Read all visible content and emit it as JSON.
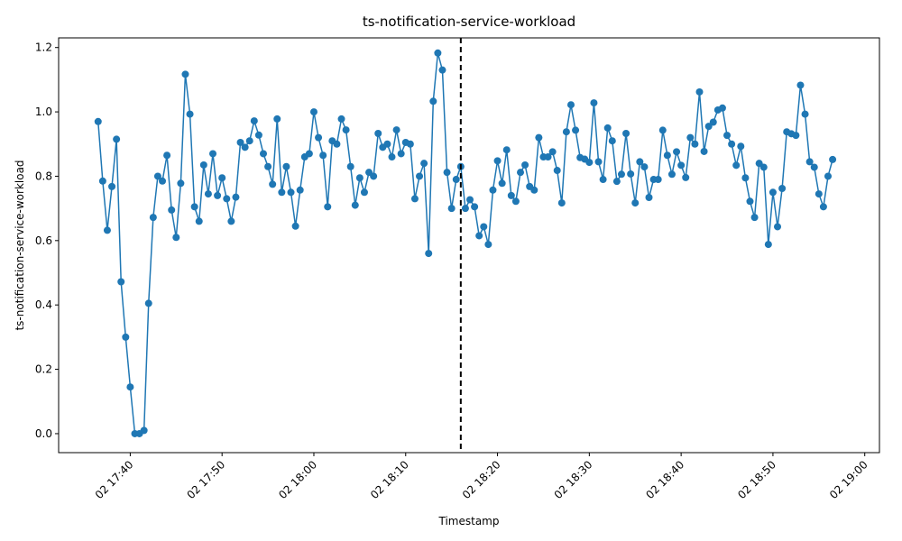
{
  "chart_data": {
    "type": "line",
    "title": "ts-notification-service-workload",
    "x_label": "Timestamp",
    "y_label": "ts-notification-service-workload",
    "x": [
      1056.5,
      1057,
      1057.5,
      1058,
      1058.5,
      1059,
      1059.5,
      1060,
      1060.5,
      1061,
      1061.5,
      1062,
      1062.5,
      1063,
      1063.5,
      1064,
      1064.5,
      1065,
      1065.5,
      1066,
      1066.5,
      1067,
      1067.5,
      1068,
      1068.5,
      1069,
      1069.5,
      1070,
      1070.5,
      1071,
      1071.5,
      1072,
      1072.5,
      1073,
      1073.5,
      1074,
      1074.5,
      1075,
      1075.5,
      1076,
      1076.5,
      1077,
      1077.5,
      1078,
      1078.5,
      1079,
      1079.5,
      1080,
      1080.5,
      1081,
      1081.5,
      1082,
      1082.5,
      1083,
      1083.5,
      1084,
      1084.5,
      1085,
      1085.5,
      1086,
      1086.5,
      1087,
      1087.5,
      1088,
      1088.5,
      1089,
      1089.5,
      1090,
      1090.5,
      1091,
      1091.5,
      1092,
      1092.5,
      1093,
      1093.5,
      1094,
      1094.5,
      1095,
      1095.5,
      1096,
      1096.5,
      1097,
      1097.5,
      1098,
      1098.5,
      1099,
      1099.5,
      1100,
      1100.5,
      1101,
      1101.5,
      1102,
      1102.5,
      1103,
      1103.5,
      1104,
      1104.5,
      1105,
      1105.5,
      1106,
      1106.5,
      1107,
      1107.5,
      1108,
      1108.5,
      1109,
      1109.5,
      1110,
      1110.5,
      1111,
      1111.5,
      1112,
      1112.5,
      1113,
      1113.5,
      1114,
      1114.5,
      1115,
      1115.5,
      1116,
      1116.5,
      1117,
      1117.5,
      1118,
      1118.5,
      1119,
      1119.5,
      1120,
      1120.5,
      1121,
      1121.5,
      1122,
      1122.5,
      1123,
      1123.5,
      1124,
      1124.5,
      1125,
      1125.5,
      1126,
      1126.5,
      1127,
      1127.5,
      1128,
      1128.5,
      1129,
      1129.5,
      1130,
      1130.5,
      1131,
      1131.5,
      1132,
      1132.5,
      1133,
      1133.5,
      1134,
      1134.5,
      1135,
      1135.5,
      1136,
      1136.5
    ],
    "series": [
      {
        "name": "ts-notification-service-workload",
        "color": "#1f77b4",
        "values": [
          0.97,
          0.785,
          0.632,
          0.768,
          0.915,
          0.472,
          0.3,
          0.145,
          0.0,
          0.0,
          0.01,
          0.405,
          0.672,
          0.8,
          0.785,
          0.865,
          0.695,
          0.61,
          0.778,
          1.117,
          0.993,
          0.705,
          0.66,
          0.835,
          0.745,
          0.87,
          0.74,
          0.795,
          0.73,
          0.66,
          0.735,
          0.905,
          0.89,
          0.91,
          0.972,
          0.928,
          0.87,
          0.83,
          0.775,
          0.978,
          0.75,
          0.83,
          0.75,
          0.645,
          0.757,
          0.86,
          0.87,
          1.0,
          0.92,
          0.865,
          0.705,
          0.91,
          0.9,
          0.978,
          0.944,
          0.83,
          0.71,
          0.795,
          0.75,
          0.812,
          0.8,
          0.933,
          0.89,
          0.9,
          0.86,
          0.944,
          0.87,
          0.905,
          0.9,
          0.73,
          0.8,
          0.84,
          0.56,
          1.033,
          1.183,
          1.13,
          0.812,
          0.7,
          0.79,
          0.83,
          0.7,
          0.727,
          0.705,
          0.615,
          0.643,
          0.588,
          0.757,
          0.848,
          0.778,
          0.882,
          0.74,
          0.722,
          0.812,
          0.835,
          0.768,
          0.757,
          0.92,
          0.86,
          0.86,
          0.876,
          0.818,
          0.717,
          0.938,
          1.022,
          0.943,
          0.858,
          0.853,
          0.843,
          1.028,
          0.845,
          0.79,
          0.95,
          0.91,
          0.784,
          0.806,
          0.933,
          0.807,
          0.717,
          0.845,
          0.829,
          0.734,
          0.79,
          0.79,
          0.943,
          0.865,
          0.806,
          0.876,
          0.834,
          0.796,
          0.92,
          0.9,
          1.062,
          0.877,
          0.955,
          0.968,
          1.006,
          1.012,
          0.927,
          0.9,
          0.834,
          0.893,
          0.795,
          0.722,
          0.672,
          0.84,
          0.828,
          0.588,
          0.75,
          0.643,
          0.762,
          0.938,
          0.932,
          0.927,
          1.083,
          0.993,
          0.845,
          0.828,
          0.745,
          0.705,
          0.8,
          0.852
        ]
      }
    ],
    "vline": 1096,
    "xlim": [
      1052.2,
      1141.6
    ],
    "xticks": [
      {
        "value": 1060,
        "label": "02 17:40"
      },
      {
        "value": 1070,
        "label": "02 17:50"
      },
      {
        "value": 1080,
        "label": "02 18:00"
      },
      {
        "value": 1090,
        "label": "02 18:10"
      },
      {
        "value": 1100,
        "label": "02 18:20"
      },
      {
        "value": 1110,
        "label": "02 18:30"
      },
      {
        "value": 1120,
        "label": "02 18:40"
      },
      {
        "value": 1130,
        "label": "02 18:50"
      },
      {
        "value": 1140,
        "label": "02 19:00"
      }
    ],
    "ylim": [
      -0.059,
      1.23
    ],
    "yticks": [
      {
        "value": 0,
        "label": "0.0"
      },
      {
        "value": 0.2,
        "label": "0.2"
      },
      {
        "value": 0.4,
        "label": "0.4"
      },
      {
        "value": 0.6,
        "label": "0.6"
      },
      {
        "value": 0.8,
        "label": "0.8"
      },
      {
        "value": 1,
        "label": "1.0"
      },
      {
        "value": 1.2,
        "label": "1.2"
      }
    ]
  }
}
